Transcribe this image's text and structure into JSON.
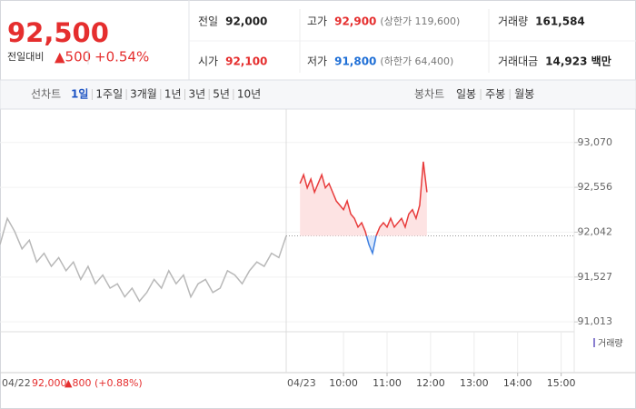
{
  "header": {
    "price": "92,500",
    "change_label": "전일대비",
    "change": "▲500",
    "change_pct": "+0.54%",
    "stats": [
      {
        "label": "전일",
        "value": "92,000",
        "color": "#222222"
      },
      {
        "label": "고가",
        "value": "92,900",
        "extra": "(상한가 119,600)",
        "color": "#e52e2e"
      },
      {
        "label": "거래량",
        "value": "161,584",
        "color": "#222222"
      },
      {
        "label": "시가",
        "value": "92,100",
        "color": "#e52e2e"
      },
      {
        "label": "저가",
        "value": "91,800",
        "extra": "(하한가 64,400)",
        "color": "#1f6fd6"
      },
      {
        "label": "거래대금",
        "value": "14,923 백만",
        "color": "#222222"
      }
    ]
  },
  "tabs": {
    "line_label": "선차트",
    "line": [
      "1일",
      "1주일",
      "3개월",
      "1년",
      "3년",
      "5년",
      "10년"
    ],
    "candle_label": "봉차트",
    "candle": [
      "일봉",
      "주봉",
      "월봉"
    ]
  },
  "chart_data": {
    "type": "line",
    "ylim": [
      90900,
      93370
    ],
    "yticks": [
      {
        "value": 91013,
        "label": "91,013"
      },
      {
        "value": 91527,
        "label": "91,527"
      },
      {
        "value": 92042,
        "label": "92,042"
      },
      {
        "value": 92556,
        "label": "92,556"
      },
      {
        "value": 93070,
        "label": "93,070"
      }
    ],
    "xlim": [
      -19,
      378
    ],
    "xticks": [
      {
        "value": 60,
        "label": "10:00"
      },
      {
        "value": 120,
        "label": "11:00"
      },
      {
        "value": 180,
        "label": "12:00"
      },
      {
        "value": 240,
        "label": "13:00"
      },
      {
        "value": 300,
        "label": "14:00"
      },
      {
        "value": 360,
        "label": "15:00"
      }
    ],
    "base_value": 92000,
    "down_color": "#3d7fe0",
    "series": [
      {
        "name": "04/22",
        "color": "#b8b8b8",
        "values": [
          91900,
          92200,
          92050,
          91850,
          91950,
          91700,
          91800,
          91650,
          91750,
          91600,
          91700,
          91500,
          91650,
          91450,
          91550,
          91400,
          91450,
          91300,
          91400,
          91250,
          91350,
          91500,
          91400,
          91600,
          91450,
          91550,
          91300,
          91450,
          91500,
          91350,
          91400,
          91600,
          91550,
          91450,
          91600,
          91700,
          91650,
          91800,
          91750,
          92000
        ]
      },
      {
        "name": "04/23",
        "color": "#e83b3b",
        "x": [
          0,
          5,
          10,
          15,
          20,
          25,
          30,
          35,
          40,
          45,
          50,
          55,
          60,
          65,
          70,
          75,
          80,
          85,
          90,
          95,
          100,
          105,
          110,
          115,
          120,
          125,
          130,
          135,
          140,
          145,
          150,
          155,
          160,
          165,
          170,
          175
        ],
        "values": [
          92600,
          92700,
          92550,
          92650,
          92500,
          92600,
          92700,
          92550,
          92600,
          92500,
          92400,
          92350,
          92300,
          92400,
          92250,
          92200,
          92100,
          92150,
          92050,
          91900,
          91800,
          92000,
          92100,
          92150,
          92100,
          92200,
          92100,
          92150,
          92200,
          92100,
          92250,
          92300,
          92200,
          92350,
          92850,
          92500
        ]
      }
    ],
    "volume_label": "거래량",
    "footer": {
      "close": "92,000",
      "change": "▲800 (+0.88%)"
    }
  }
}
